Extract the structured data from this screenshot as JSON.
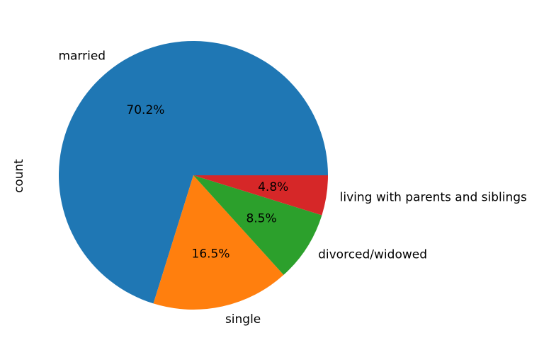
{
  "chart_data": {
    "type": "pie",
    "title": "",
    "ylabel": "count",
    "labels": [
      "married",
      "single",
      "divorced/widowed",
      "living with parents and siblings"
    ],
    "values": [
      70.2,
      16.5,
      8.5,
      4.8
    ],
    "percent_labels": [
      "70.2%",
      "16.5%",
      "8.5%",
      "4.8%"
    ],
    "colors": [
      "#1f77b4",
      "#ff7f0e",
      "#2ca02c",
      "#d62728"
    ],
    "start_angle_deg": 0,
    "direction": "counterclockwise"
  }
}
